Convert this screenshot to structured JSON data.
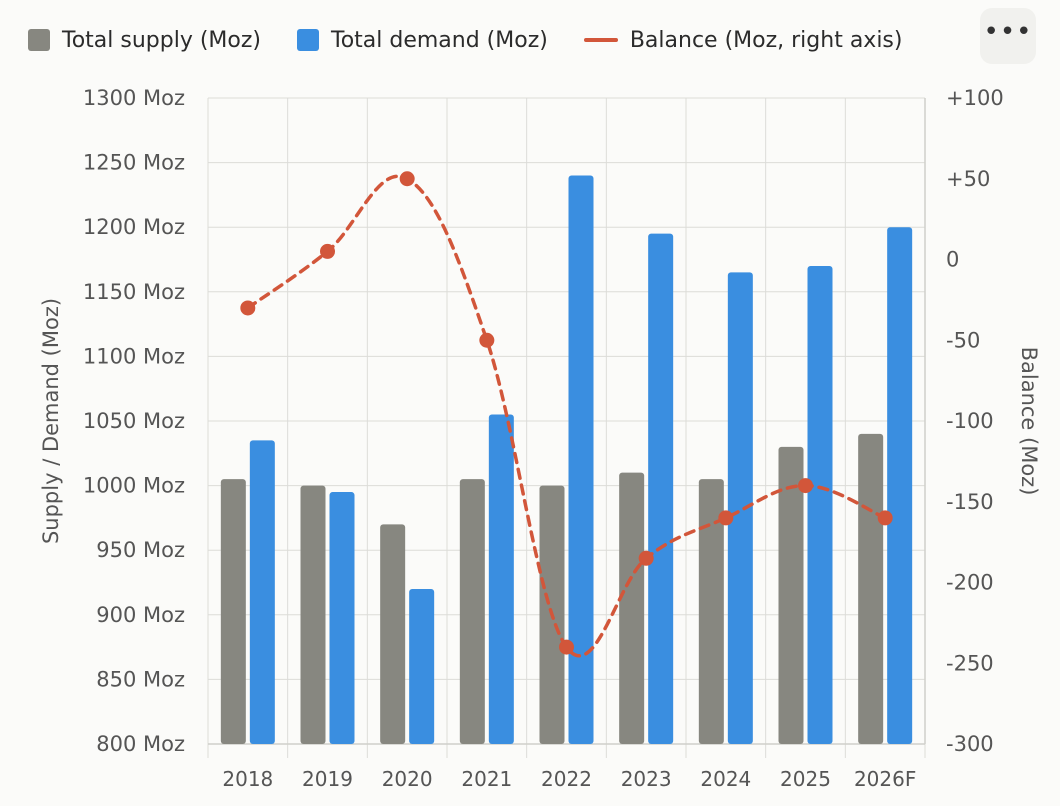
{
  "menu": {
    "more_label": "•••"
  },
  "chart_data": {
    "type": "bar",
    "categories": [
      "2018",
      "2019",
      "2020",
      "2021",
      "2022",
      "2023",
      "2024",
      "2025",
      "2026F"
    ],
    "series": [
      {
        "name": "Total supply (Moz)",
        "kind": "bar",
        "axis": "left",
        "color": "#878780",
        "values": [
          1005,
          1000,
          970,
          1005,
          1000,
          1010,
          1005,
          1030,
          1040
        ]
      },
      {
        "name": "Total demand (Moz)",
        "kind": "bar",
        "axis": "left",
        "color": "#3a8ee0",
        "values": [
          1035,
          995,
          920,
          1055,
          1240,
          1195,
          1165,
          1170,
          1200
        ]
      },
      {
        "name": "Balance (Moz, right axis)",
        "kind": "line",
        "axis": "right",
        "color": "#d2563a",
        "values": [
          -30,
          5,
          50,
          -50,
          -240,
          -185,
          -160,
          -140,
          -160
        ]
      }
    ],
    "ylabel": "Supply / Demand (Moz)",
    "y2label": "Balance (Moz)",
    "ylim": [
      800,
      1300
    ],
    "y2lim": [
      -300,
      100
    ],
    "yticks": [
      "800 Moz",
      "850 Moz",
      "900 Moz",
      "950 Moz",
      "1000 Moz",
      "1050 Moz",
      "1100 Moz",
      "1150 Moz",
      "1200 Moz",
      "1250 Moz",
      "1300 Moz"
    ],
    "y2ticks": [
      "-300",
      "-250",
      "-200",
      "-150",
      "-100",
      "-50",
      "0",
      "+50",
      "+100"
    ],
    "grid": true,
    "legend": "top-left"
  }
}
